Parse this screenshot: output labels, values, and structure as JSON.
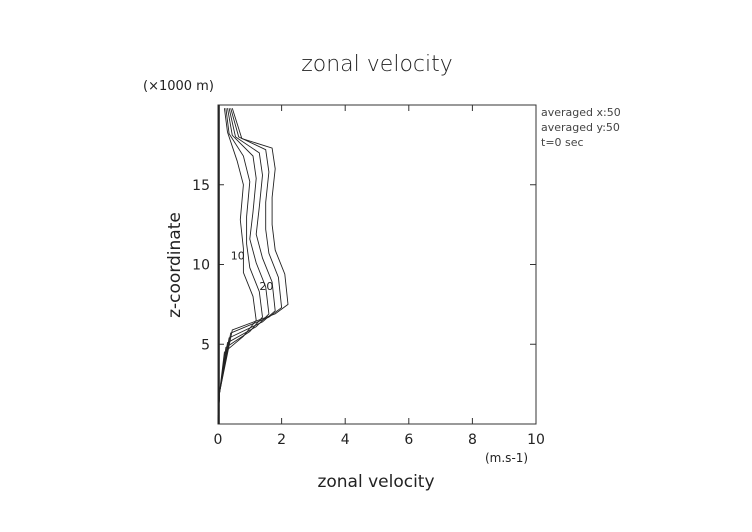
{
  "chart_data": {
    "type": "line",
    "title": "zonal velocity",
    "xlabel": "zonal velocity",
    "ylabel": "z-coordinate",
    "x_unit": "(m.s-1)",
    "y_unit": "(×1000 m)",
    "xlim": [
      0,
      10
    ],
    "ylim": [
      0,
      20
    ],
    "x_ticks": [
      "0",
      "2",
      "4",
      "6",
      "8",
      "10"
    ],
    "y_ticks": [
      "5",
      "10",
      "15"
    ],
    "annotations": [
      "averaged  x:50",
      "averaged  y:50",
      "t=0 sec"
    ],
    "contour_labels": [
      "10",
      "20"
    ],
    "grid": false,
    "series": [
      {
        "values": [
          [
            0,
            0
          ],
          [
            0.05,
            2
          ],
          [
            0.2,
            4.5
          ],
          [
            0.8,
            5.5
          ],
          [
            1.2,
            6.5
          ],
          [
            1.1,
            8
          ],
          [
            0.8,
            9.5
          ],
          [
            0.8,
            11
          ],
          [
            0.7,
            12.8
          ],
          [
            0.8,
            15
          ],
          [
            0.6,
            16.5
          ],
          [
            0.3,
            18.3
          ],
          [
            0.2,
            19.8
          ]
        ]
      },
      {
        "values": [
          [
            0,
            0
          ],
          [
            0.05,
            2
          ],
          [
            0.25,
            4.8
          ],
          [
            1.0,
            5.8
          ],
          [
            1.4,
            6.7
          ],
          [
            1.3,
            8.3
          ],
          [
            1.0,
            9.8
          ],
          [
            0.9,
            11.3
          ],
          [
            0.9,
            13
          ],
          [
            1.0,
            15.2
          ],
          [
            0.8,
            16.8
          ],
          [
            0.35,
            18.2
          ],
          [
            0.25,
            19.8
          ]
        ]
      },
      {
        "values": [
          [
            0,
            0
          ],
          [
            0.05,
            2
          ],
          [
            0.3,
            5.1
          ],
          [
            1.2,
            6.1
          ],
          [
            1.6,
            6.9
          ],
          [
            1.5,
            8.6
          ],
          [
            1.2,
            10.1
          ],
          [
            1.0,
            11.6
          ],
          [
            1.1,
            13.3
          ],
          [
            1.2,
            15.4
          ],
          [
            1.1,
            16.8
          ],
          [
            0.45,
            18.1
          ],
          [
            0.3,
            19.8
          ]
        ]
      },
      {
        "values": [
          [
            0,
            0
          ],
          [
            0.05,
            2
          ],
          [
            0.35,
            5.4
          ],
          [
            1.4,
            6.4
          ],
          [
            1.8,
            7.1
          ],
          [
            1.7,
            8.9
          ],
          [
            1.4,
            10.4
          ],
          [
            1.2,
            11.9
          ],
          [
            1.3,
            13.6
          ],
          [
            1.4,
            15.6
          ],
          [
            1.3,
            17.0
          ],
          [
            0.55,
            18.0
          ],
          [
            0.35,
            19.8
          ]
        ]
      },
      {
        "values": [
          [
            0,
            0
          ],
          [
            0.05,
            2
          ],
          [
            0.4,
            5.7
          ],
          [
            1.6,
            6.7
          ],
          [
            2.0,
            7.3
          ],
          [
            1.9,
            9.2
          ],
          [
            1.6,
            10.7
          ],
          [
            1.5,
            12.2
          ],
          [
            1.5,
            13.9
          ],
          [
            1.6,
            15.8
          ],
          [
            1.5,
            17.2
          ],
          [
            0.65,
            18.0
          ],
          [
            0.4,
            19.8
          ]
        ]
      },
      {
        "values": [
          [
            0,
            0
          ],
          [
            0.05,
            2
          ],
          [
            0.45,
            5.9
          ],
          [
            1.8,
            6.9
          ],
          [
            2.2,
            7.5
          ],
          [
            2.1,
            9.4
          ],
          [
            1.8,
            10.9
          ],
          [
            1.7,
            12.5
          ],
          [
            1.7,
            14.2
          ],
          [
            1.8,
            16.0
          ],
          [
            1.7,
            17.3
          ],
          [
            0.75,
            17.9
          ],
          [
            0.45,
            19.8
          ]
        ]
      }
    ]
  }
}
